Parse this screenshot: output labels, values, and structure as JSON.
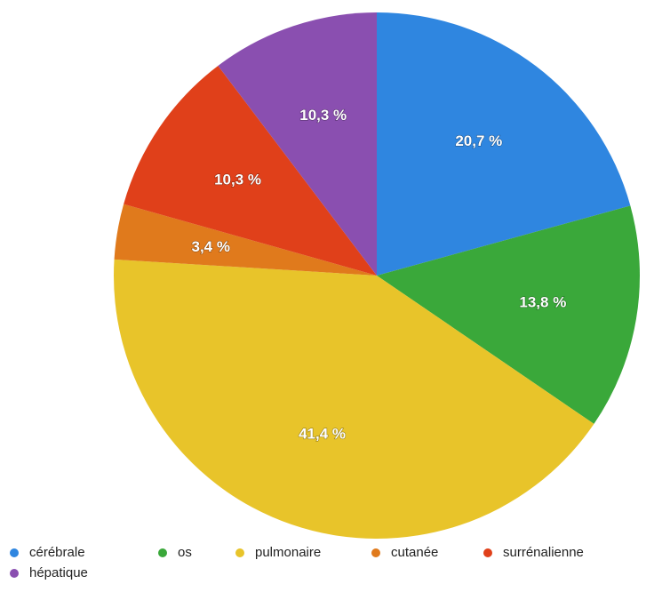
{
  "chart_data": {
    "type": "pie",
    "categories": [
      "cérébrale",
      "os",
      "pulmonaire",
      "cutanée",
      "surrénalienne",
      "hépatique"
    ],
    "values": [
      20.7,
      13.8,
      41.4,
      3.4,
      10.3,
      10.3
    ],
    "value_labels": [
      "20,7 %",
      "13,8 %",
      "41,4 %",
      "3,4 %",
      "10,3 %",
      "10,3 %"
    ],
    "colors": [
      "#2f86e0",
      "#3aa83a",
      "#e8c42a",
      "#e07a1c",
      "#e0401a",
      "#8a4fb0"
    ],
    "legend": "bottom"
  }
}
